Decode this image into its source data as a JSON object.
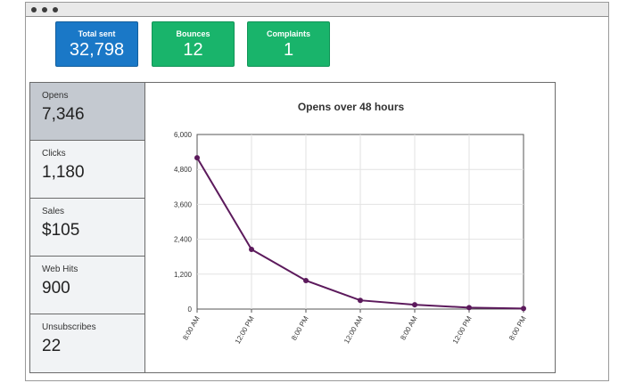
{
  "stats": {
    "total_sent": {
      "label": "Total sent",
      "value": "32,798",
      "color": "#1a78c7"
    },
    "bounces": {
      "label": "Bounces",
      "value": "12",
      "color": "#19b46b"
    },
    "complaints": {
      "label": "Complaints",
      "value": "1",
      "color": "#19b46b"
    }
  },
  "sidebar": {
    "items": [
      {
        "label": "Opens",
        "value": "7,346",
        "active": true
      },
      {
        "label": "Clicks",
        "value": "1,180"
      },
      {
        "label": "Sales",
        "value": "$105"
      },
      {
        "label": "Web Hits",
        "value": "900"
      },
      {
        "label": "Unsubscribes",
        "value": "22"
      }
    ]
  },
  "chart_data": {
    "type": "line",
    "title": "Opens over 48 hours",
    "xlabel": "",
    "ylabel": "",
    "categories": [
      "8:00 AM",
      "12:00 PM",
      "8:00 PM",
      "12:00 AM",
      "8:00 AM",
      "12:00 PM",
      "8:00 PM"
    ],
    "values": [
      5200,
      2050,
      980,
      300,
      150,
      50,
      20
    ],
    "yticks": [
      "0",
      "1,200",
      "2,400",
      "3,600",
      "4,800",
      "6,000"
    ],
    "ylim": [
      0,
      6000
    ],
    "grid": true,
    "line_color": "#5c1a5c"
  }
}
